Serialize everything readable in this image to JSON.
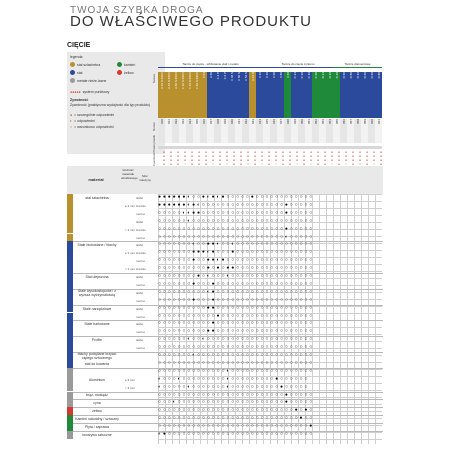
{
  "header": {
    "kicker": "TWOJA SZYBKA DROGA",
    "title": "DO WŁAŚCIWEGO PRODUKTU"
  },
  "section_title": "CIĘCIE",
  "legend": {
    "heading": "legenda",
    "items": [
      {
        "label": "stal szlachetna",
        "color": "#b8902e"
      },
      {
        "label": "kamień",
        "color": "#1f8a3a"
      },
      {
        "label": "stal",
        "color": "#2b4a9b"
      },
      {
        "label": "żeliwo",
        "color": "#d63a2e"
      },
      {
        "label": "metale nieże-lazne",
        "color": "#9a9a9a"
      }
    ],
    "points_label": "system punktowy",
    "points_glyph": "●●●●●",
    "suitability_heading": "Żywotność",
    "suitability_note": "Żywotność (praktyczna wydajność dla typ produktu)",
    "rating_items": [
      {
        "glyph": "●",
        "label": "= szczególnie odpowiedni"
      },
      {
        "glyph": "◐",
        "label": "= odpowiedni"
      },
      {
        "glyph": "○",
        "label": "= warunkowo odpowiedni"
      }
    ]
  },
  "upper": {
    "group_labels": [
      "Tarcze do cięcia - szlifowanie stali i metalu",
      "Tarcze do cięcia cyrkonu",
      "Tarcze diamentowe"
    ],
    "group_colors": [
      "#2b4a9b",
      "#2b4a9b",
      "#1f8a3a"
    ],
    "row_labels": [
      "Nazwa",
      "Numer",
      "Paski plastik",
      "Żywotność"
    ],
    "products": [
      {
        "name": "A 36 S INOX",
        "code": "030",
        "color": "#b8902e",
        "mark": "●●●●○"
      },
      {
        "name": "A 46 S INOX",
        "code": "031",
        "color": "#b8902e",
        "mark": "●●●●○"
      },
      {
        "name": "A 60 S INOX",
        "code": "032",
        "color": "#b8902e",
        "mark": "●●●●●"
      },
      {
        "name": "X 36 S INOX",
        "code": "033",
        "color": "#b8902e",
        "mark": "●●●○○"
      },
      {
        "name": "X 46 S INOX",
        "code": "034",
        "color": "#b8902e",
        "mark": "●●●●○"
      },
      {
        "name": "X 60 S INOX",
        "code": "035",
        "color": "#b8902e",
        "mark": "●●●●●"
      },
      {
        "name": "X 54",
        "code": "036",
        "color": "#b8902e",
        "mark": "●●●●○"
      },
      {
        "name": "A 60",
        "code": "037",
        "color": "#2b4a9b",
        "mark": "●●●○○"
      },
      {
        "name": "X 4 P",
        "code": "038",
        "color": "#2b4a9b",
        "mark": "●●●●○"
      },
      {
        "name": "X 6 P",
        "code": "039",
        "color": "#2b4a9b",
        "mark": "●●●○○"
      },
      {
        "name": "X 46 S",
        "code": "040",
        "color": "#2b4a9b",
        "mark": "●●●●○"
      },
      {
        "name": "X 60 S",
        "code": "041",
        "color": "#2b4a9b",
        "mark": "●●●●●"
      },
      {
        "name": "X 54 S",
        "code": "042",
        "color": "#2b4a9b",
        "mark": "●●●○○"
      },
      {
        "name": "A 24 R",
        "code": "043",
        "color": "#b8902e",
        "mark": "●●●●○"
      },
      {
        "name": "X 36",
        "code": "044",
        "color": "#2b4a9b",
        "mark": "●●●○○"
      },
      {
        "name": "X 46",
        "code": "045",
        "color": "#2b4a9b",
        "mark": "●●●●○"
      },
      {
        "name": "X 60",
        "code": "046",
        "color": "#2b4a9b",
        "mark": "●●●○○"
      },
      {
        "name": "X 80",
        "code": "047",
        "color": "#2b4a9b",
        "mark": "●●●●○"
      },
      {
        "name": "X 66",
        "code": "048",
        "color": "#1f8a3a",
        "mark": "●●●●●"
      },
      {
        "name": "C 24",
        "code": "049",
        "color": "#2b4a9b",
        "mark": "●●●○○"
      },
      {
        "name": "C 36",
        "code": "050",
        "color": "#2b4a9b",
        "mark": "●●●●○"
      },
      {
        "name": "C 46",
        "code": "051",
        "color": "#2b4a9b",
        "mark": "●●●○○"
      },
      {
        "name": "C 60",
        "code": "052",
        "color": "#1f8a3a",
        "mark": "●●●●○"
      },
      {
        "name": "D 24",
        "code": "053",
        "color": "#1f8a3a",
        "mark": "●●●●●"
      },
      {
        "name": "D 36",
        "code": "054",
        "color": "#1f8a3a",
        "mark": "●●●○○"
      },
      {
        "name": "D 46",
        "code": "055",
        "color": "#1f8a3a",
        "mark": "●●●●○"
      },
      {
        "name": "D 60",
        "code": "056",
        "color": "#2b4a9b",
        "mark": "●●●○○"
      },
      {
        "name": "D 80",
        "code": "057",
        "color": "#2b4a9b",
        "mark": "●●●●○"
      },
      {
        "name": "D 46",
        "code": "058",
        "color": "#2b4a9b",
        "mark": "●●●○○"
      },
      {
        "name": "D 60",
        "code": "059",
        "color": "#2b4a9b",
        "mark": "●●●●○"
      },
      {
        "name": "D 66",
        "code": "060",
        "color": "#2b4a9b",
        "mark": "●●●○○"
      },
      {
        "name": "D 80",
        "code": "061",
        "color": "#2b4a9b",
        "mark": "●●●●○"
      }
    ]
  },
  "lower": {
    "headers": {
      "material": "materiał",
      "thickness": "Grubość materiału obrabianego",
      "speed": "Moc maszyny"
    },
    "rows": [
      {
        "cat_color": "#b8902e",
        "material": "stal szlachetna",
        "thickness": "",
        "speed": "słabo",
        "cells": "●●●●●●◐○○●◐●◐●○○○○○●○○○○○○○○○○○○",
        "sep": false
      },
      {
        "cat_color": "#b8902e",
        "material": "",
        "thickness": "≤ 3 mm",
        "speed": "średnio",
        "cells": "●●●●●●◐●◐○○○○○○○○○○○○○○○○○●○○○○○",
        "sep": false
      },
      {
        "cat_color": "#b8902e",
        "material": "",
        "thickness": "",
        "speed": "mocno",
        "cells": "○○○○○◐◐●●○○○○○○○○○○○○○○○○○●○○○○○",
        "sep": false
      },
      {
        "cat_color": "#b8902e",
        "material": "",
        "thickness": "",
        "speed": "słabo",
        "cells": "○○○○○○◐○○○○○○○○○○○○○○○○○○○○○○○○○",
        "sep": false
      },
      {
        "cat_color": "#b8902e",
        "material": "",
        "thickness": "> 3 mm",
        "speed": "średnio",
        "cells": "○○○○○○○○○○○○○○○○○○○○○○○○○○●○○○○○",
        "sep": false
      },
      {
        "cat_color": "#b8902e",
        "material": "",
        "thickness": "",
        "speed": "mocno",
        "cells": "○○○○○○○○○○○○○○○○○○○○○○○○○○◐○○○○○",
        "sep": true
      },
      {
        "cat_color": "#2b4a9b",
        "material": "Stale budowlane / blachy",
        "thickness": "",
        "speed": "słabo",
        "cells": "○○○○○○○◐○○●●◐○○◐○○○○○○○○○○○○○○○○",
        "sep": false
      },
      {
        "cat_color": "#2b4a9b",
        "material": "",
        "thickness": "≤ 3 mm",
        "speed": "średnio",
        "cells": "○○○○○○○●●●◐●○○○●○○○○○○○○○○○○○○○○",
        "sep": false
      },
      {
        "cat_color": "#2b4a9b",
        "material": "",
        "thickness": "",
        "speed": "mocno",
        "cells": "○○○○○○○●○○●●◐●○○○○○○○○○○○○○○○○○○",
        "sep": false
      },
      {
        "cat_color": "#2b4a9b",
        "material": "",
        "thickness": "> 3 mm",
        "speed": "średnio",
        "cells": "○○○○○○○○○○●○●○●●○○○○○○○○○○○○○○○○",
        "sep": true
      },
      {
        "cat_color": "#2b4a9b",
        "material": "Stal ulepszona",
        "thickness": "",
        "speed": "słabo",
        "cells": "○○○○○○○○●○◐○○○◐○○○○○○○○○○○○○○○○○",
        "sep": false
      },
      {
        "cat_color": "#2b4a9b",
        "material": "",
        "thickness": "",
        "speed": "mocno",
        "cells": "○○○○○○○●○○○●○○○○○○○○○○○○○○○○○○○○",
        "sep": true
      },
      {
        "cat_color": "#2b4a9b",
        "material": "Stale wysokostopowe i z wyższa wytrzymałością",
        "thickness": "",
        "speed": "słabo",
        "cells": "○○○○○○○○○○◐●○○○○○○○○○○○○○○○○○○○○",
        "sep": false
      },
      {
        "cat_color": "#2b4a9b",
        "material": "",
        "thickness": "",
        "speed": "mocno",
        "cells": "○○○○○○○●○○○●○○○○○○○○○○○○○○○○○○○○",
        "sep": true
      },
      {
        "cat_color": "#2b4a9b",
        "material": "Stale narzędziowe",
        "thickness": "",
        "speed": "słabo",
        "cells": "○○○○○○○○○○●●○○○○○○○○○○○○○○○○○○○○",
        "sep": false
      },
      {
        "cat_color": "#2b4a9b",
        "material": "",
        "thickness": "",
        "speed": "mocno",
        "cells": "○○○○○○○○○○○○●○○○○○○○○○○○○○○○○○○○",
        "sep": true
      },
      {
        "cat_color": "#2b4a9b",
        "material": "Stale hartowane",
        "thickness": "",
        "speed": "słabo",
        "cells": "○○○○○○○○○○○●○○○○○○○○○○○○○○○○○○○○",
        "sep": false
      },
      {
        "cat_color": "#2b4a9b",
        "material": "",
        "thickness": "",
        "speed": "mocno",
        "cells": "○○○○○○○○○○●●○○○○○○○○○○○○○○○○○○○○",
        "sep": true
      },
      {
        "cat_color": "#2b4a9b",
        "material": "Profile",
        "thickness": "",
        "speed": "słabo",
        "cells": "○○○○○○◐○○◐○○○○○○○○○○○○○○○○○○○○○○",
        "sep": false
      },
      {
        "cat_color": "#2b4a9b",
        "material": "",
        "thickness": "",
        "speed": "mocno",
        "cells": "○○○○○○○○○○○○○○○○○○○○○○○○○○○○○○○○",
        "sep": true
      },
      {
        "cat_color": "#2b4a9b",
        "material": "blachy pocięliane krzywo ciętego sztucznego",
        "thickness": "",
        "speed": "",
        "cells": "○○○○○○○◐○○○○○○○○○○○○○○○○○○○○○○○○",
        "sep": false
      },
      {
        "cat_color": "#2b4a9b",
        "material": "stal do kowania",
        "thickness": "",
        "speed": "",
        "cells": "○○○○○○○○○○○○○○○○○○○○○○○○○○○○○○○○",
        "sep": true
      },
      {
        "cat_color": "#9a9a9a",
        "material": "",
        "thickness": "",
        "speed": "",
        "cells": "○○○○○○○○○○○○○○◐○○○○○○○○○○○○○○○○○",
        "sep": false
      },
      {
        "cat_color": "#9a9a9a",
        "material": "Aluminium",
        "thickness": "≤ 3 mm",
        "speed": "",
        "cells": "◐○○○◐○○○○○○○○○◐○○○○○○○○○●○○○○○○",
        "sep": false
      },
      {
        "cat_color": "#9a9a9a",
        "material": "",
        "thickness": "> 3 mm",
        "speed": "",
        "cells": "◐○○○○○◐○○○○○○○◐○○○○○○○○○○●○○○○○",
        "sep": true
      },
      {
        "cat_color": "#9a9a9a",
        "material": "brąz, mosiądz",
        "thickness": "",
        "speed": "",
        "cells": "○○○○○○○○○○○○○○○○○○○○○○○○○○●○○○○○",
        "sep": true
      },
      {
        "cat_color": "#9a9a9a",
        "material": "cyna",
        "thickness": "",
        "speed": "",
        "cells": "○○○◐○○○○○○○○○○○○○○○○○○○○○○●○○○○○",
        "sep": true
      },
      {
        "cat_color": "#d63a2e",
        "material": "żeliwo",
        "thickness": "",
        "speed": "",
        "cells": "○○○○○○○○○○○○○○○○○○○○○○○○○○○○●○●○",
        "sep": true
      },
      {
        "cat_color": "#1f8a3a",
        "material": "Kamień naturalny / sztuczny",
        "thickness": "",
        "speed": "",
        "cells": "○○○○○○○○○○○○○○○○○○○○○○○○○○○○○●○○",
        "sep": true
      },
      {
        "cat_color": "#1f8a3a",
        "material": "Płyta / zaprawa",
        "thickness": "",
        "speed": "",
        "cells": "○○○○○○○○○○○○○○○○○○○○○○○○○○○○○○○●",
        "sep": true
      },
      {
        "cat_color": "#9a9a9a",
        "material": "tworzywo sztuczne",
        "thickness": "",
        "speed": "",
        "cells": "◐●○○○○○○○○○○○○○○○○○○○○○○○○○○○○○○",
        "sep": false
      }
    ]
  }
}
